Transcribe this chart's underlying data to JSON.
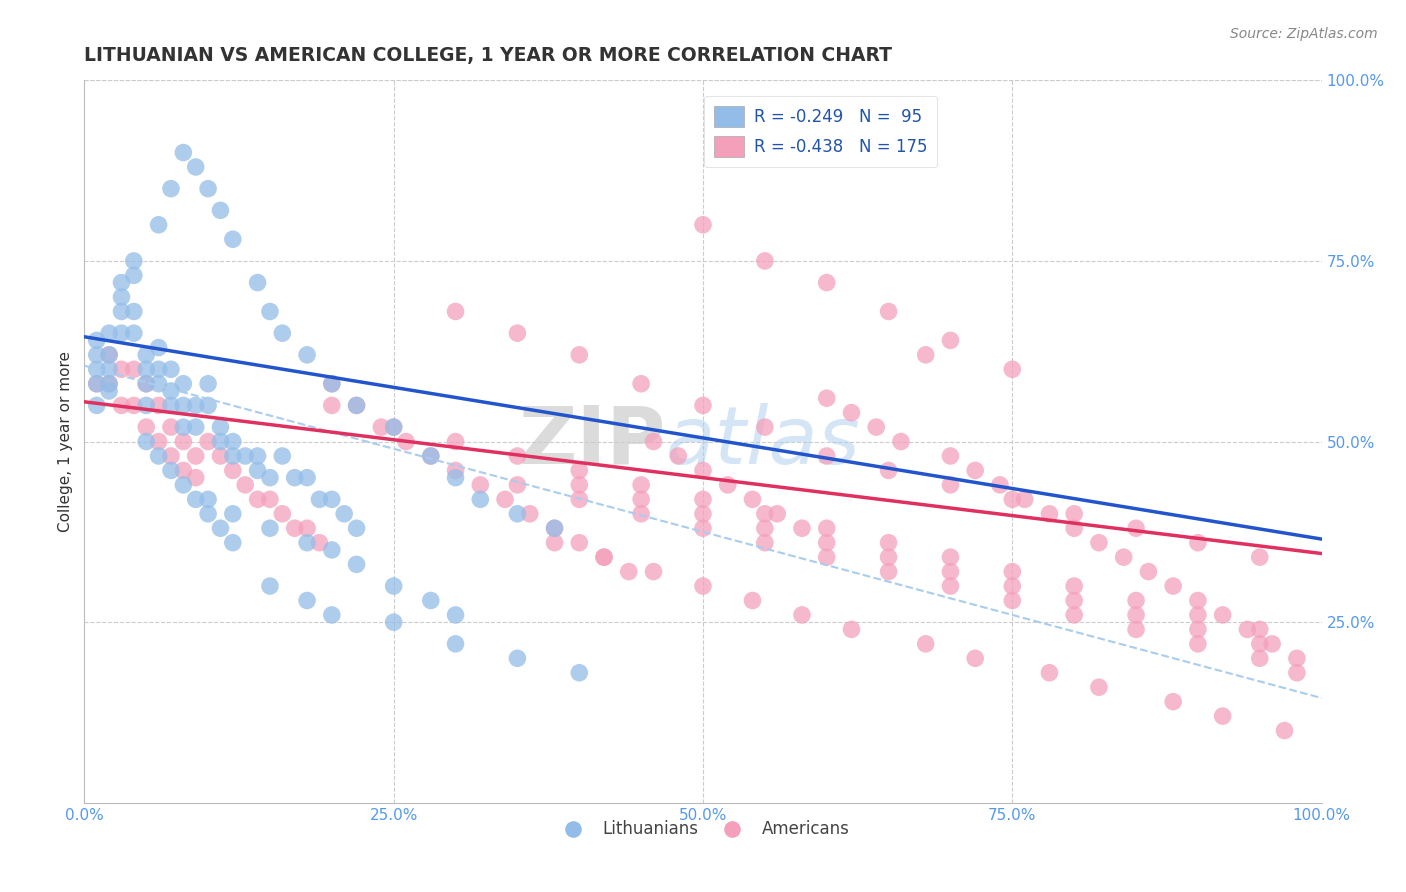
{
  "title": "LITHUANIAN VS AMERICAN COLLEGE, 1 YEAR OR MORE CORRELATION CHART",
  "source_text": "Source: ZipAtlas.com",
  "ylabel": "College, 1 year or more",
  "xlim": [
    0.0,
    1.0
  ],
  "ylim": [
    0.0,
    1.0
  ],
  "xtick_vals": [
    0.0,
    0.25,
    0.5,
    0.75,
    1.0
  ],
  "ytick_vals_right": [
    0.25,
    0.5,
    0.75,
    1.0
  ],
  "legend_label_r1": "R = -0.249   N =  95",
  "legend_label_r2": "R = -0.438   N = 175",
  "legend_label_lithuanians": "Lithuanians",
  "legend_label_americans": "Americans",
  "scatter_blue_x": [
    0.01,
    0.01,
    0.01,
    0.01,
    0.01,
    0.02,
    0.02,
    0.02,
    0.02,
    0.02,
    0.03,
    0.03,
    0.03,
    0.03,
    0.04,
    0.04,
    0.04,
    0.04,
    0.05,
    0.05,
    0.05,
    0.05,
    0.06,
    0.06,
    0.06,
    0.07,
    0.07,
    0.07,
    0.08,
    0.08,
    0.08,
    0.09,
    0.09,
    0.1,
    0.1,
    0.11,
    0.11,
    0.12,
    0.12,
    0.13,
    0.14,
    0.14,
    0.15,
    0.16,
    0.17,
    0.18,
    0.19,
    0.2,
    0.21,
    0.22,
    0.06,
    0.07,
    0.08,
    0.09,
    0.1,
    0.11,
    0.12,
    0.14,
    0.15,
    0.16,
    0.18,
    0.2,
    0.22,
    0.25,
    0.28,
    0.3,
    0.32,
    0.35,
    0.38,
    0.1,
    0.12,
    0.15,
    0.18,
    0.2,
    0.22,
    0.25,
    0.28,
    0.3,
    0.05,
    0.06,
    0.07,
    0.08,
    0.09,
    0.1,
    0.11,
    0.12,
    0.15,
    0.18,
    0.2,
    0.25,
    0.3,
    0.35,
    0.4
  ],
  "scatter_blue_y": [
    0.6,
    0.62,
    0.64,
    0.58,
    0.55,
    0.62,
    0.65,
    0.58,
    0.6,
    0.57,
    0.7,
    0.72,
    0.68,
    0.65,
    0.75,
    0.73,
    0.68,
    0.65,
    0.55,
    0.58,
    0.62,
    0.6,
    0.63,
    0.6,
    0.58,
    0.55,
    0.6,
    0.57,
    0.58,
    0.55,
    0.52,
    0.55,
    0.52,
    0.58,
    0.55,
    0.52,
    0.5,
    0.5,
    0.48,
    0.48,
    0.46,
    0.48,
    0.45,
    0.48,
    0.45,
    0.45,
    0.42,
    0.42,
    0.4,
    0.38,
    0.8,
    0.85,
    0.9,
    0.88,
    0.85,
    0.82,
    0.78,
    0.72,
    0.68,
    0.65,
    0.62,
    0.58,
    0.55,
    0.52,
    0.48,
    0.45,
    0.42,
    0.4,
    0.38,
    0.42,
    0.4,
    0.38,
    0.36,
    0.35,
    0.33,
    0.3,
    0.28,
    0.26,
    0.5,
    0.48,
    0.46,
    0.44,
    0.42,
    0.4,
    0.38,
    0.36,
    0.3,
    0.28,
    0.26,
    0.25,
    0.22,
    0.2,
    0.18
  ],
  "scatter_pink_x": [
    0.01,
    0.02,
    0.02,
    0.03,
    0.03,
    0.04,
    0.04,
    0.05,
    0.05,
    0.06,
    0.06,
    0.07,
    0.07,
    0.08,
    0.08,
    0.09,
    0.09,
    0.1,
    0.11,
    0.12,
    0.13,
    0.14,
    0.15,
    0.16,
    0.17,
    0.18,
    0.19,
    0.2,
    0.22,
    0.24,
    0.26,
    0.28,
    0.3,
    0.32,
    0.34,
    0.36,
    0.38,
    0.4,
    0.42,
    0.44,
    0.46,
    0.48,
    0.5,
    0.52,
    0.54,
    0.56,
    0.58,
    0.6,
    0.62,
    0.64,
    0.66,
    0.68,
    0.7,
    0.72,
    0.74,
    0.76,
    0.78,
    0.8,
    0.82,
    0.84,
    0.86,
    0.88,
    0.9,
    0.92,
    0.94,
    0.96,
    0.98,
    0.3,
    0.35,
    0.4,
    0.45,
    0.5,
    0.55,
    0.6,
    0.65,
    0.7,
    0.75,
    0.8,
    0.85,
    0.9,
    0.95,
    0.35,
    0.4,
    0.45,
    0.5,
    0.55,
    0.6,
    0.65,
    0.7,
    0.75,
    0.8,
    0.85,
    0.9,
    0.95,
    0.98,
    0.2,
    0.25,
    0.3,
    0.35,
    0.4,
    0.45,
    0.5,
    0.55,
    0.6,
    0.65,
    0.7,
    0.75,
    0.8,
    0.85,
    0.9,
    0.95,
    0.5,
    0.55,
    0.6,
    0.65,
    0.7,
    0.75,
    0.4,
    0.45,
    0.5,
    0.55,
    0.6,
    0.65,
    0.7,
    0.75,
    0.8,
    0.85,
    0.9,
    0.95,
    0.38,
    0.42,
    0.46,
    0.5,
    0.54,
    0.58,
    0.62,
    0.68,
    0.72,
    0.78,
    0.82,
    0.88,
    0.92,
    0.97
  ],
  "scatter_pink_y": [
    0.58,
    0.62,
    0.58,
    0.6,
    0.55,
    0.6,
    0.55,
    0.58,
    0.52,
    0.55,
    0.5,
    0.52,
    0.48,
    0.5,
    0.46,
    0.48,
    0.45,
    0.5,
    0.48,
    0.46,
    0.44,
    0.42,
    0.42,
    0.4,
    0.38,
    0.38,
    0.36,
    0.58,
    0.55,
    0.52,
    0.5,
    0.48,
    0.46,
    0.44,
    0.42,
    0.4,
    0.38,
    0.36,
    0.34,
    0.32,
    0.5,
    0.48,
    0.46,
    0.44,
    0.42,
    0.4,
    0.38,
    0.56,
    0.54,
    0.52,
    0.5,
    0.62,
    0.48,
    0.46,
    0.44,
    0.42,
    0.4,
    0.38,
    0.36,
    0.34,
    0.32,
    0.3,
    0.28,
    0.26,
    0.24,
    0.22,
    0.2,
    0.68,
    0.65,
    0.62,
    0.58,
    0.55,
    0.52,
    0.48,
    0.46,
    0.44,
    0.42,
    0.4,
    0.38,
    0.36,
    0.34,
    0.44,
    0.42,
    0.4,
    0.38,
    0.36,
    0.34,
    0.32,
    0.3,
    0.28,
    0.26,
    0.24,
    0.22,
    0.2,
    0.18,
    0.55,
    0.52,
    0.5,
    0.48,
    0.46,
    0.44,
    0.42,
    0.4,
    0.38,
    0.36,
    0.34,
    0.32,
    0.3,
    0.28,
    0.26,
    0.24,
    0.8,
    0.75,
    0.72,
    0.68,
    0.64,
    0.6,
    0.44,
    0.42,
    0.4,
    0.38,
    0.36,
    0.34,
    0.32,
    0.3,
    0.28,
    0.26,
    0.24,
    0.22,
    0.36,
    0.34,
    0.32,
    0.3,
    0.28,
    0.26,
    0.24,
    0.22,
    0.2,
    0.18,
    0.16,
    0.14,
    0.12,
    0.1
  ],
  "blue_line_x": [
    0.0,
    1.0
  ],
  "blue_line_y": [
    0.645,
    0.365
  ],
  "pink_line_x": [
    0.0,
    1.0
  ],
  "pink_line_y": [
    0.555,
    0.345
  ],
  "dash_line_x": [
    0.0,
    1.0
  ],
  "dash_line_y": [
    0.605,
    0.145
  ],
  "watermark_zip": "ZIP",
  "watermark_atlas": "atlas",
  "title_color": "#333333",
  "title_fontsize": 13.5,
  "source_fontsize": 10,
  "blue_scatter_color": "#93bde8",
  "pink_scatter_color": "#f4a0bb",
  "blue_line_color": "#2255cc",
  "pink_line_color": "#e03060",
  "dash_line_color": "#aaccee",
  "grid_color": "#cccccc",
  "background_color": "#ffffff",
  "legend_text_color": "#2255aa",
  "axis_tick_color": "#5599ee"
}
